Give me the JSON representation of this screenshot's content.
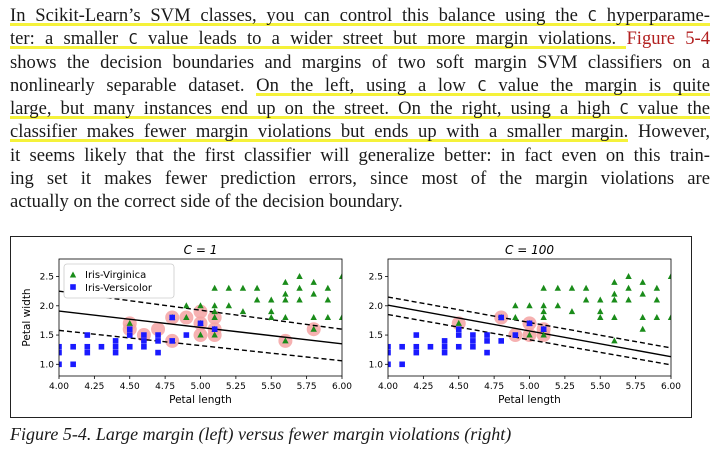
{
  "paragraph": {
    "line1": {
      "t1": "In Scikit-Learn’s SVM classes, you can control this balance using the ",
      "code": "C",
      "t2": " hyperparame-"
    },
    "line2": {
      "t1": "ter: a smaller ",
      "code": "C",
      "t2": " value leads to a wider street but more margin violations. ",
      "xref": "Figure 5-4"
    },
    "line3": {
      "t1": "shows the decision boundaries and margins of two soft margin SVM classifiers on a"
    },
    "line4": {
      "t1": "nonlinearly separable dataset. ",
      "t2": "On the left, using a low ",
      "code": "C",
      "t3": " value the margin is quite"
    },
    "line5": {
      "t1": "large, but many instances end up on the street. On the right, using a high ",
      "code": "C",
      "t2": " value the"
    },
    "line6": {
      "t1": "classifier makes fewer margin violations but ends up with a smaller margin.",
      "t2": " However,"
    },
    "line7": {
      "t1": "it seems likely that the first classifier will generalize better: in fact even on this train-"
    },
    "line8": {
      "t1": "ing set it makes fewer prediction errors, since most of the margin violations are"
    },
    "line9": {
      "t1": "actually on the correct side of the decision boundary."
    }
  },
  "caption": "Figure 5-4. Large margin (left) versus fewer margin violations (right)",
  "colors": {
    "highlight": "#f5f23a",
    "xref": "#b21f1f",
    "virginica": "#1a8c1a",
    "versicolor": "#1a1aff",
    "support_vector": "#f4a3a3"
  },
  "chart_data": [
    {
      "type": "scatter",
      "title": "C = 1",
      "xlabel": "Petal length",
      "ylabel": "Petal width",
      "xlim": [
        4.0,
        6.0
      ],
      "ylim": [
        0.8,
        2.8
      ],
      "xticks": [
        "4.00",
        "4.25",
        "4.50",
        "4.75",
        "5.00",
        "5.25",
        "5.50",
        "5.75",
        "6.00"
      ],
      "yticks": [
        "1.0",
        "1.5",
        "2.0",
        "2.5"
      ],
      "legend": {
        "placement": "top-left",
        "entries": [
          "Iris-Virginica",
          "Iris-Versicolor"
        ]
      },
      "decision_boundary": {
        "x": [
          4.0,
          6.0
        ],
        "y": [
          1.91,
          1.35
        ]
      },
      "margin_upper": {
        "x": [
          4.0,
          6.0
        ],
        "y": [
          2.25,
          1.6
        ]
      },
      "margin_lower": {
        "x": [
          4.0,
          6.0
        ],
        "y": [
          1.58,
          1.06
        ]
      },
      "series": [
        {
          "name": "Iris-Virginica",
          "marker": "triangle",
          "points": [
            [
              4.5,
              1.7
            ],
            [
              4.8,
              1.8
            ],
            [
              4.9,
              1.8
            ],
            [
              4.9,
              2.0
            ],
            [
              5.0,
              1.5
            ],
            [
              5.0,
              1.7
            ],
            [
              5.0,
              2.0
            ],
            [
              5.1,
              1.5
            ],
            [
              5.1,
              1.6
            ],
            [
              5.1,
              1.8
            ],
            [
              5.1,
              1.9
            ],
            [
              5.1,
              2.0
            ],
            [
              5.1,
              2.3
            ],
            [
              5.2,
              2.0
            ],
            [
              5.2,
              2.3
            ],
            [
              5.3,
              1.9
            ],
            [
              5.3,
              2.3
            ],
            [
              5.4,
              2.1
            ],
            [
              5.4,
              2.3
            ],
            [
              5.5,
              1.8
            ],
            [
              5.5,
              2.1
            ],
            [
              5.5,
              1.9
            ],
            [
              5.6,
              1.4
            ],
            [
              5.6,
              1.8
            ],
            [
              5.6,
              2.1
            ],
            [
              5.6,
              2.2
            ],
            [
              5.6,
              2.4
            ],
            [
              5.7,
              2.1
            ],
            [
              5.7,
              2.3
            ],
            [
              5.7,
              2.5
            ],
            [
              5.8,
              1.6
            ],
            [
              5.8,
              1.8
            ],
            [
              5.8,
              2.2
            ],
            [
              5.8,
              2.4
            ],
            [
              5.9,
              2.1
            ],
            [
              5.9,
              2.3
            ],
            [
              5.9,
              1.8
            ],
            [
              6.0,
              1.8
            ],
            [
              6.0,
              2.5
            ]
          ]
        },
        {
          "name": "Iris-Versicolor",
          "marker": "square",
          "points": [
            [
              4.0,
              1.0
            ],
            [
              4.0,
              1.2
            ],
            [
              4.0,
              1.3
            ],
            [
              4.1,
              1.0
            ],
            [
              4.1,
              1.3
            ],
            [
              4.2,
              1.2
            ],
            [
              4.2,
              1.3
            ],
            [
              4.2,
              1.5
            ],
            [
              4.3,
              1.3
            ],
            [
              4.4,
              1.2
            ],
            [
              4.4,
              1.3
            ],
            [
              4.4,
              1.4
            ],
            [
              4.5,
              1.3
            ],
            [
              4.5,
              1.5
            ],
            [
              4.5,
              1.6
            ],
            [
              4.6,
              1.3
            ],
            [
              4.6,
              1.4
            ],
            [
              4.6,
              1.5
            ],
            [
              4.7,
              1.2
            ],
            [
              4.7,
              1.4
            ],
            [
              4.7,
              1.5
            ],
            [
              4.8,
              1.4
            ],
            [
              4.8,
              1.8
            ],
            [
              4.9,
              1.5
            ],
            [
              5.0,
              1.7
            ],
            [
              5.1,
              1.6
            ]
          ]
        }
      ],
      "support_vectors": [
        [
          4.5,
          1.7
        ],
        [
          4.5,
          1.6
        ],
        [
          4.6,
          1.5
        ],
        [
          4.7,
          1.6
        ],
        [
          4.8,
          1.4
        ],
        [
          4.8,
          1.8
        ],
        [
          4.9,
          1.8
        ],
        [
          5.0,
          1.5
        ],
        [
          5.0,
          1.7
        ],
        [
          5.0,
          1.9
        ],
        [
          5.1,
          1.5
        ],
        [
          5.1,
          1.6
        ],
        [
          5.1,
          1.8
        ],
        [
          5.6,
          1.4
        ],
        [
          5.8,
          1.6
        ]
      ]
    },
    {
      "type": "scatter",
      "title": "C = 100",
      "xlabel": "Petal length",
      "ylabel": "",
      "xlim": [
        4.0,
        6.0
      ],
      "ylim": [
        0.8,
        2.8
      ],
      "xticks": [
        "4.00",
        "4.25",
        "4.50",
        "4.75",
        "5.00",
        "5.25",
        "5.50",
        "5.75",
        "6.00"
      ],
      "yticks": [
        "1.0",
        "1.5",
        "2.0",
        "2.5"
      ],
      "decision_boundary": {
        "x": [
          4.0,
          6.0
        ],
        "y": [
          2.01,
          1.13
        ]
      },
      "margin_upper": {
        "x": [
          4.0,
          6.0
        ],
        "y": [
          2.15,
          1.28
        ]
      },
      "margin_lower": {
        "x": [
          4.0,
          6.0
        ],
        "y": [
          1.85,
          0.99
        ]
      },
      "series": [
        {
          "name": "Iris-Virginica",
          "marker": "triangle",
          "points": [
            [
              4.5,
              1.7
            ],
            [
              4.8,
              1.8
            ],
            [
              4.9,
              1.8
            ],
            [
              4.9,
              2.0
            ],
            [
              5.0,
              1.5
            ],
            [
              5.0,
              1.7
            ],
            [
              5.0,
              2.0
            ],
            [
              5.1,
              1.5
            ],
            [
              5.1,
              1.6
            ],
            [
              5.1,
              1.8
            ],
            [
              5.1,
              1.9
            ],
            [
              5.1,
              2.0
            ],
            [
              5.1,
              2.3
            ],
            [
              5.2,
              2.0
            ],
            [
              5.2,
              2.3
            ],
            [
              5.3,
              1.9
            ],
            [
              5.3,
              2.3
            ],
            [
              5.4,
              2.1
            ],
            [
              5.4,
              2.3
            ],
            [
              5.5,
              1.8
            ],
            [
              5.5,
              2.1
            ],
            [
              5.5,
              1.9
            ],
            [
              5.6,
              1.4
            ],
            [
              5.6,
              1.8
            ],
            [
              5.6,
              2.1
            ],
            [
              5.6,
              2.2
            ],
            [
              5.6,
              2.4
            ],
            [
              5.7,
              2.1
            ],
            [
              5.7,
              2.3
            ],
            [
              5.7,
              2.5
            ],
            [
              5.8,
              1.6
            ],
            [
              5.8,
              1.8
            ],
            [
              5.8,
              2.2
            ],
            [
              5.8,
              2.4
            ],
            [
              5.9,
              2.1
            ],
            [
              5.9,
              2.3
            ],
            [
              5.9,
              1.8
            ],
            [
              6.0,
              1.8
            ],
            [
              6.0,
              2.5
            ]
          ]
        },
        {
          "name": "Iris-Versicolor",
          "marker": "square",
          "points": [
            [
              4.0,
              1.0
            ],
            [
              4.0,
              1.2
            ],
            [
              4.0,
              1.3
            ],
            [
              4.1,
              1.0
            ],
            [
              4.1,
              1.3
            ],
            [
              4.2,
              1.2
            ],
            [
              4.2,
              1.3
            ],
            [
              4.2,
              1.5
            ],
            [
              4.3,
              1.3
            ],
            [
              4.4,
              1.2
            ],
            [
              4.4,
              1.3
            ],
            [
              4.4,
              1.4
            ],
            [
              4.5,
              1.3
            ],
            [
              4.5,
              1.5
            ],
            [
              4.5,
              1.6
            ],
            [
              4.6,
              1.3
            ],
            [
              4.6,
              1.4
            ],
            [
              4.6,
              1.5
            ],
            [
              4.7,
              1.2
            ],
            [
              4.7,
              1.4
            ],
            [
              4.7,
              1.5
            ],
            [
              4.8,
              1.4
            ],
            [
              4.8,
              1.8
            ],
            [
              4.9,
              1.5
            ],
            [
              5.0,
              1.7
            ],
            [
              5.1,
              1.6
            ]
          ]
        }
      ],
      "support_vectors": [
        [
          4.5,
          1.7
        ],
        [
          4.8,
          1.8
        ],
        [
          4.9,
          1.5
        ],
        [
          5.0,
          1.7
        ],
        [
          5.0,
          1.5
        ],
        [
          5.1,
          1.5
        ],
        [
          5.1,
          1.6
        ]
      ]
    }
  ]
}
